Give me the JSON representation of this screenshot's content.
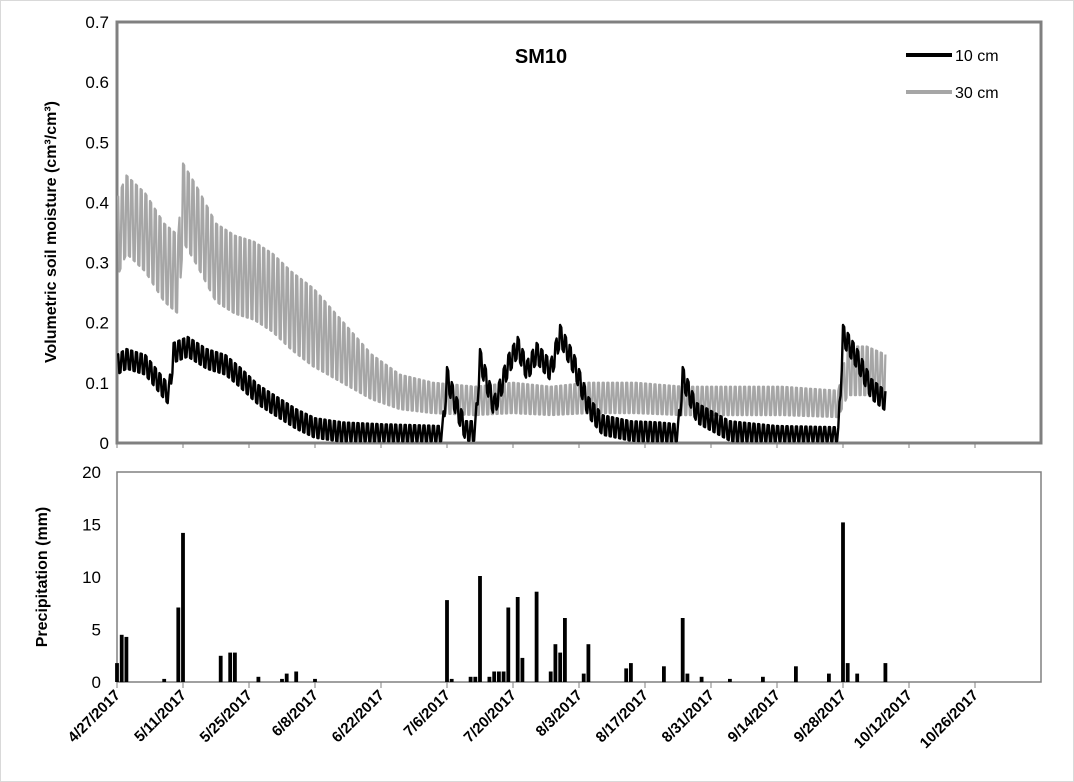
{
  "chart_data": [
    {
      "type": "line",
      "title": "SM10",
      "xlabel": "",
      "ylabel": "Volumetric soil moisture (cm³/cm³)",
      "ylim": [
        0,
        0.7
      ],
      "yticks": [
        "0",
        "0.1",
        "0.2",
        "0.3",
        "0.4",
        "0.5",
        "0.6",
        "0.7"
      ],
      "xlim": [
        "4/27/2017",
        "11/9/2017"
      ],
      "x_ticks": [
        "4/27/2017",
        "5/11/2017",
        "5/25/2017",
        "6/8/2017",
        "6/22/2017",
        "7/6/2017",
        "7/20/2017",
        "8/3/2017",
        "8/17/2017",
        "8/31/2017",
        "9/14/2017",
        "9/28/2017",
        "10/12/2017",
        "10/26/2017"
      ],
      "legend_position": "top-right",
      "grid": false,
      "series": [
        {
          "name": "10 cm",
          "color": "#000000",
          "note_shape": "daily fluctuating band",
          "points": [
            [
              "4/27/2017",
              0.13
            ],
            [
              "4/29/2017",
              0.14
            ],
            [
              "5/3/2017",
              0.13
            ],
            [
              "5/6/2017",
              0.1
            ],
            [
              "5/8/2017",
              0.08
            ],
            [
              "5/9/2017",
              0.15
            ],
            [
              "5/12/2017",
              0.16
            ],
            [
              "5/16/2017",
              0.14
            ],
            [
              "5/20/2017",
              0.13
            ],
            [
              "5/23/2017",
              0.11
            ],
            [
              "5/27/2017",
              0.08
            ],
            [
              "5/31/2017",
              0.06
            ],
            [
              "6/4/2017",
              0.04
            ],
            [
              "6/8/2017",
              0.025
            ],
            [
              "6/14/2017",
              0.018
            ],
            [
              "6/22/2017",
              0.015
            ],
            [
              "7/1/2017",
              0.013
            ],
            [
              "7/5/2017",
              0.012
            ],
            [
              "7/6/2017",
              0.11
            ],
            [
              "7/8/2017",
              0.06
            ],
            [
              "7/10/2017",
              0.02
            ],
            [
              "7/12/2017",
              0.02
            ],
            [
              "7/13/2017",
              0.14
            ],
            [
              "7/16/2017",
              0.06
            ],
            [
              "7/19/2017",
              0.13
            ],
            [
              "7/21/2017",
              0.16
            ],
            [
              "7/23/2017",
              0.12
            ],
            [
              "7/25/2017",
              0.15
            ],
            [
              "7/28/2017",
              0.12
            ],
            [
              "7/30/2017",
              0.18
            ],
            [
              "8/2/2017",
              0.13
            ],
            [
              "8/5/2017",
              0.06
            ],
            [
              "8/8/2017",
              0.03
            ],
            [
              "8/14/2017",
              0.02
            ],
            [
              "8/20/2017",
              0.018
            ],
            [
              "8/24/2017",
              0.015
            ],
            [
              "8/25/2017",
              0.11
            ],
            [
              "8/28/2017",
              0.05
            ],
            [
              "9/4/2017",
              0.02
            ],
            [
              "9/14/2017",
              0.012
            ],
            [
              "9/27/2017",
              0.01
            ],
            [
              "9/28/2017",
              0.18
            ],
            [
              "10/1/2017",
              0.14
            ],
            [
              "10/4/2017",
              0.09
            ],
            [
              "10/7/2017",
              0.07
            ]
          ]
        },
        {
          "name": "30 cm",
          "color": "#a6a6a6",
          "note_shape": "daily fluctuating band",
          "points": [
            [
              "4/27/2017",
              0.34
            ],
            [
              "4/29/2017",
              0.38
            ],
            [
              "5/3/2017",
              0.35
            ],
            [
              "5/7/2017",
              0.3
            ],
            [
              "5/10/2017",
              0.28
            ],
            [
              "5/11/2017",
              0.4
            ],
            [
              "5/14/2017",
              0.36
            ],
            [
              "5/18/2017",
              0.3
            ],
            [
              "5/22/2017",
              0.28
            ],
            [
              "5/26/2017",
              0.27
            ],
            [
              "5/30/2017",
              0.25
            ],
            [
              "6/3/2017",
              0.22
            ],
            [
              "6/8/2017",
              0.19
            ],
            [
              "6/14/2017",
              0.15
            ],
            [
              "6/20/2017",
              0.11
            ],
            [
              "6/26/2017",
              0.085
            ],
            [
              "7/3/2017",
              0.075
            ],
            [
              "7/12/2017",
              0.07
            ],
            [
              "7/20/2017",
              0.075
            ],
            [
              "7/28/2017",
              0.07
            ],
            [
              "8/5/2017",
              0.075
            ],
            [
              "8/15/2017",
              0.075
            ],
            [
              "8/25/2017",
              0.07
            ],
            [
              "9/5/2017",
              0.07
            ],
            [
              "9/15/2017",
              0.07
            ],
            [
              "9/27/2017",
              0.065
            ],
            [
              "9/29/2017",
              0.12
            ],
            [
              "10/3/2017",
              0.12
            ],
            [
              "10/7/2017",
              0.11
            ]
          ]
        }
      ]
    },
    {
      "type": "bar",
      "xlabel": "",
      "ylabel": "Precipitation (mm)",
      "ylim": [
        0,
        20
      ],
      "yticks": [
        "0",
        "5",
        "10",
        "15",
        "20"
      ],
      "xlim": [
        "4/27/2017",
        "11/9/2017"
      ],
      "x_ticks": [
        "4/27/2017",
        "5/11/2017",
        "5/25/2017",
        "6/8/2017",
        "6/22/2017",
        "7/6/2017",
        "7/20/2017",
        "8/3/2017",
        "8/17/2017",
        "8/31/2017",
        "9/14/2017",
        "9/28/2017",
        "10/12/2017",
        "10/26/2017"
      ],
      "color": "#000000",
      "bars": [
        [
          "4/27/2017",
          1.8
        ],
        [
          "4/28/2017",
          4.5
        ],
        [
          "4/29/2017",
          4.3
        ],
        [
          "5/7/2017",
          0.3
        ],
        [
          "5/10/2017",
          7.1
        ],
        [
          "5/11/2017",
          14.2
        ],
        [
          "5/19/2017",
          2.5
        ],
        [
          "5/21/2017",
          2.8
        ],
        [
          "5/22/2017",
          2.8
        ],
        [
          "5/27/2017",
          0.5
        ],
        [
          "6/1/2017",
          0.3
        ],
        [
          "6/2/2017",
          0.8
        ],
        [
          "6/4/2017",
          1.0
        ],
        [
          "6/8/2017",
          0.3
        ],
        [
          "7/6/2017",
          7.8
        ],
        [
          "7/7/2017",
          0.3
        ],
        [
          "7/11/2017",
          0.5
        ],
        [
          "7/12/2017",
          0.5
        ],
        [
          "7/13/2017",
          10.1
        ],
        [
          "7/15/2017",
          0.5
        ],
        [
          "7/16/2017",
          1.0
        ],
        [
          "7/17/2017",
          1.0
        ],
        [
          "7/18/2017",
          1.0
        ],
        [
          "7/19/2017",
          7.1
        ],
        [
          "7/21/2017",
          8.1
        ],
        [
          "7/22/2017",
          2.3
        ],
        [
          "7/25/2017",
          8.6
        ],
        [
          "7/28/2017",
          1.0
        ],
        [
          "7/29/2017",
          3.6
        ],
        [
          "7/30/2017",
          2.8
        ],
        [
          "7/31/2017",
          6.1
        ],
        [
          "8/4/2017",
          0.8
        ],
        [
          "8/5/2017",
          3.6
        ],
        [
          "8/13/2017",
          1.3
        ],
        [
          "8/14/2017",
          1.8
        ],
        [
          "8/21/2017",
          1.5
        ],
        [
          "8/25/2017",
          6.1
        ],
        [
          "8/26/2017",
          0.8
        ],
        [
          "8/29/2017",
          0.5
        ],
        [
          "9/4/2017",
          0.3
        ],
        [
          "9/11/2017",
          0.5
        ],
        [
          "9/18/2017",
          1.5
        ],
        [
          "9/25/2017",
          0.8
        ],
        [
          "9/28/2017",
          15.2
        ],
        [
          "9/29/2017",
          1.8
        ],
        [
          "10/1/2017",
          0.8
        ],
        [
          "10/7/2017",
          1.8
        ]
      ]
    }
  ]
}
